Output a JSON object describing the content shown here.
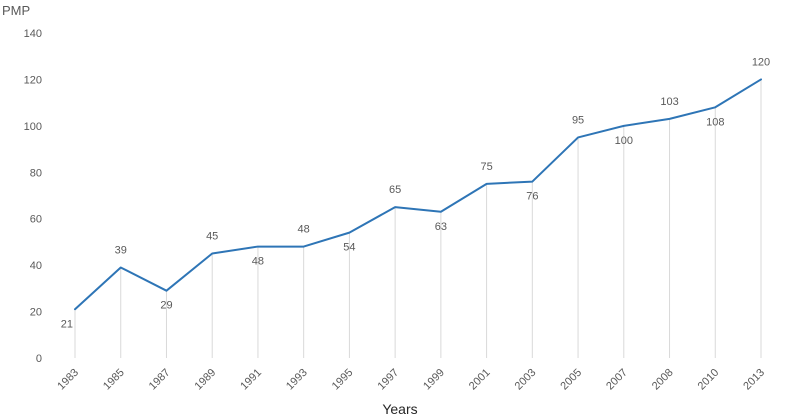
{
  "chart_data": {
    "type": "line",
    "title": "",
    "xlabel": "Years",
    "ylabel": "PMP",
    "ylim": [
      0,
      140
    ],
    "yticks": [
      0,
      20,
      40,
      60,
      80,
      100,
      120,
      140
    ],
    "grid": false,
    "drop_lines": true,
    "categories": [
      "1983",
      "1985",
      "1987",
      "1989",
      "1991",
      "1993",
      "1995",
      "1997",
      "1999",
      "2001",
      "2003",
      "2005",
      "2007",
      "2008",
      "2010",
      "2013"
    ],
    "series": [
      {
        "color": "#2e75b6",
        "values": [
          21,
          39,
          29,
          45,
          48,
          48,
          54,
          65,
          63,
          75,
          76,
          95,
          100,
          103,
          108,
          120
        ]
      }
    ],
    "data_labels": [
      {
        "text": "21",
        "position": "below"
      },
      {
        "text": "39",
        "position": "above"
      },
      {
        "text": "29",
        "position": "below"
      },
      {
        "text": "45",
        "position": "above"
      },
      {
        "text": "48",
        "position": "below"
      },
      {
        "text": "48",
        "position": "above"
      },
      {
        "text": "54",
        "position": "below"
      },
      {
        "text": "65",
        "position": "above"
      },
      {
        "text": "63",
        "position": "below"
      },
      {
        "text": "75",
        "position": "above"
      },
      {
        "text": "76",
        "position": "below"
      },
      {
        "text": "95",
        "position": "above"
      },
      {
        "text": "100",
        "position": "below"
      },
      {
        "text": "103",
        "position": "above"
      },
      {
        "text": "108",
        "position": "below"
      },
      {
        "text": "120",
        "position": "above"
      }
    ]
  }
}
